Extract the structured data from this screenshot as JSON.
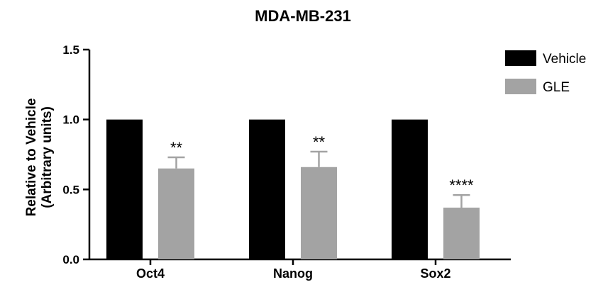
{
  "chart_data": {
    "type": "bar",
    "title": "MDA-MB-231",
    "ylabel_line1": "Relative to Vehicle",
    "ylabel_line2": "(Arbitrary units)",
    "xlabel": "",
    "ylim": [
      0,
      1.5
    ],
    "yticks": [
      0.0,
      0.5,
      1.0,
      1.5
    ],
    "ytick_labels": [
      "0.0",
      "0.5",
      "1.0",
      "1.5"
    ],
    "categories": [
      "Oct4",
      "Nanog",
      "Sox2"
    ],
    "series": [
      {
        "name": "Vehicle",
        "color": "#000000",
        "values": [
          1.0,
          1.0,
          1.0
        ],
        "errors": [
          0,
          0,
          0
        ]
      },
      {
        "name": "GLE",
        "color": "#a3a3a3",
        "values": [
          0.65,
          0.66,
          0.37
        ],
        "errors": [
          0.08,
          0.11,
          0.09
        ]
      }
    ],
    "significance": [
      "**",
      "**",
      "****"
    ],
    "legend_position": "top-right"
  }
}
